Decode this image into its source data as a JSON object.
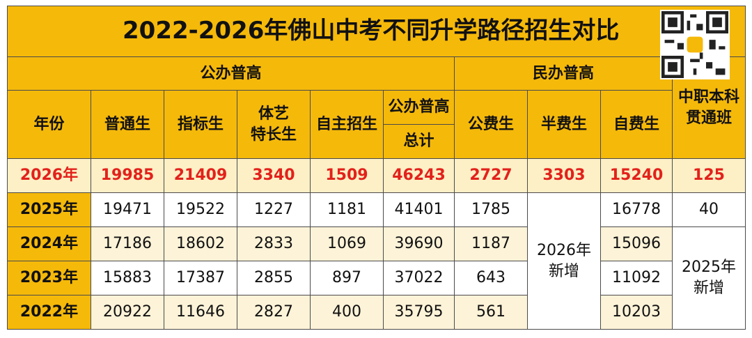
{
  "title": "2022-2026年佛山中考不同升学路径招生对比",
  "groups": {
    "public": "公办普高",
    "private": "民办普高",
    "vocational": [
      "中职本科",
      "贯通班"
    ]
  },
  "headers": {
    "year": "年份",
    "regular": "普通生",
    "quota": "指标生",
    "arts_sports": [
      "体艺",
      "特长生"
    ],
    "independent": "自主招生",
    "public_total": [
      "公办普高",
      "总计"
    ],
    "public_fee": "公费生",
    "half_fee": "半费生",
    "self_fee": "自费生"
  },
  "rows": [
    {
      "year": "2026年",
      "cells": [
        19985,
        21409,
        3340,
        1509,
        46243,
        2727,
        3303,
        15240,
        125
      ]
    },
    {
      "year": "2025年",
      "cells": [
        19471,
        19522,
        1227,
        1181,
        41401,
        1785,
        16778,
        40
      ]
    },
    {
      "year": "2024年",
      "cells": [
        17186,
        18602,
        2833,
        1069,
        39690,
        1187,
        15096
      ]
    },
    {
      "year": "2023年",
      "cells": [
        15883,
        17387,
        2855,
        897,
        37022,
        643,
        11092
      ]
    },
    {
      "year": "2022年",
      "cells": [
        20922,
        11646,
        2827,
        400,
        35795,
        561,
        10203
      ]
    }
  ],
  "new_2026": [
    "2026年",
    "新增"
  ],
  "new_2025": [
    "2025年",
    "新增"
  ]
}
